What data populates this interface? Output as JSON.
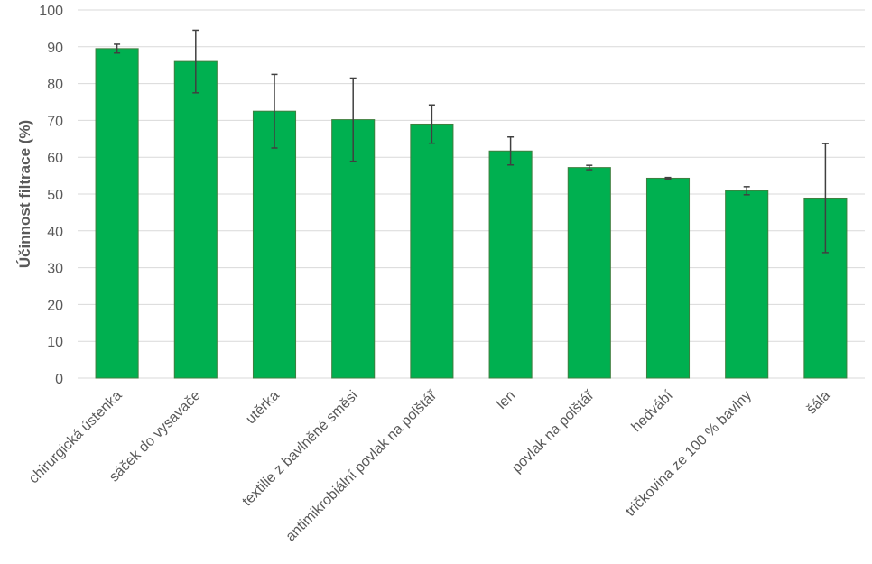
{
  "chart_data": {
    "type": "bar",
    "title": "",
    "xlabel": "",
    "ylabel": "Účinnost filtrace (%)",
    "ylim": [
      0,
      100
    ],
    "yticks": [
      0,
      10,
      20,
      30,
      40,
      50,
      60,
      70,
      80,
      90,
      100
    ],
    "grid": true,
    "legend": "none",
    "bar_color": "#00B050",
    "bar_stroke": "#3f7f3f",
    "error_bar_color": "#404040",
    "categories": [
      "chirurgická ústenka",
      "sáček do vysavače",
      "utěrka",
      "textilie z bavlněné směsi",
      "antimikrobiální povlak na polštář",
      "len",
      "povlak na polštář",
      "hedvábí",
      "tričkovina ze 100 % bavlny",
      "šála"
    ],
    "values": [
      89.5,
      86,
      72.5,
      70.2,
      69,
      61.7,
      57.2,
      54.3,
      50.9,
      48.9
    ],
    "errors": [
      1.2,
      8.5,
      10,
      11.3,
      5.2,
      3.8,
      0.6,
      0.2,
      1.1,
      14.8
    ]
  }
}
